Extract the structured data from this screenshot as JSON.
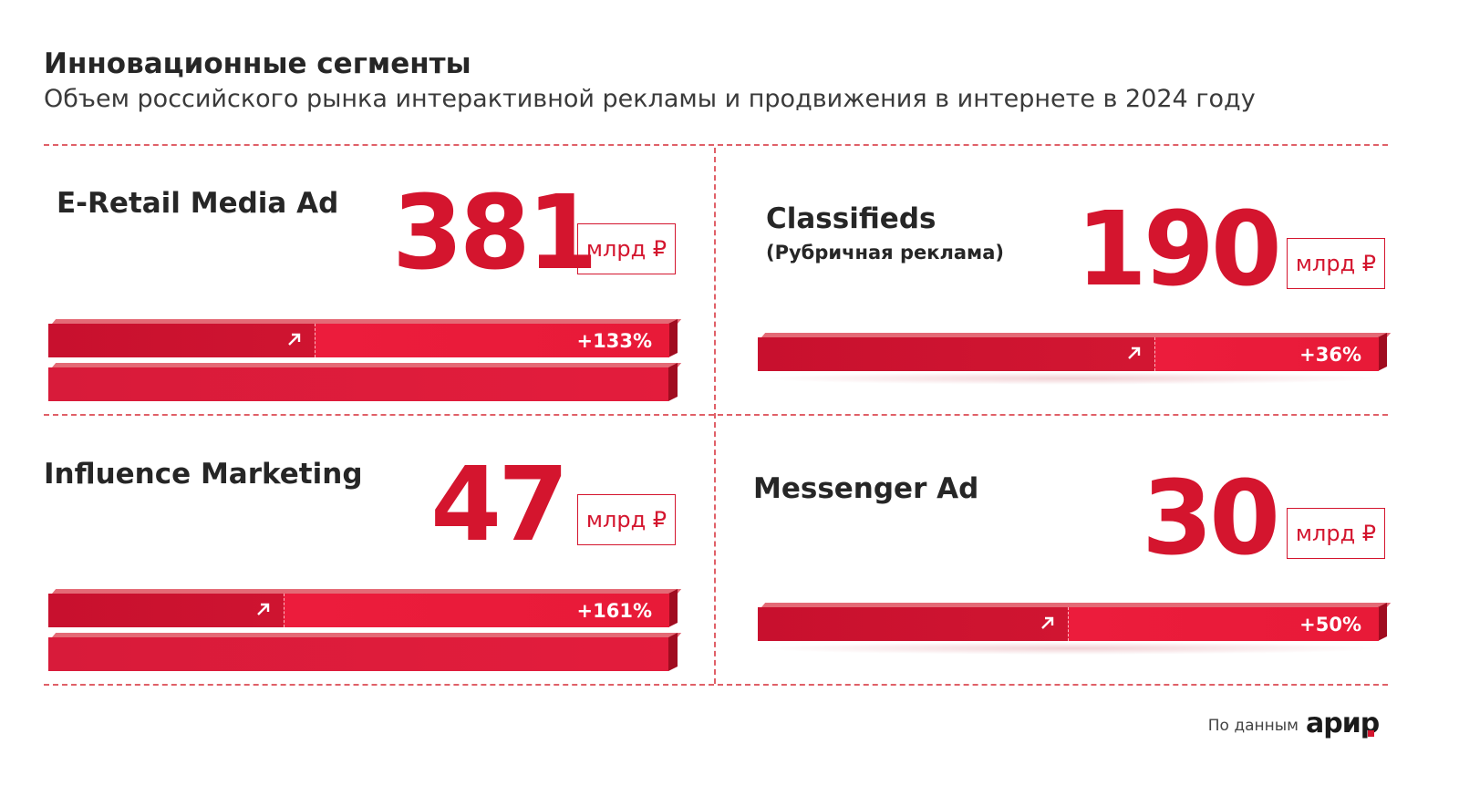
{
  "header": {
    "title": "Инновационные сегменты",
    "subtitle": "Объем российского рынка интерактивной рекламы и продвижения в интернете в 2024 году"
  },
  "unit": "млрд ₽",
  "source": {
    "label": "По данным",
    "logo": "арир"
  },
  "colors": {
    "accent": "#d4152e",
    "grid": "#e06068"
  },
  "icons": {
    "growth": "arrow-up-right-icon"
  },
  "chart_data": {
    "type": "bar",
    "segments": [
      {
        "name": "E-Retail Media Ad",
        "subname": "",
        "value": "381",
        "growth": "+133%",
        "growth_share": 0.57
      },
      {
        "name": "Classifieds",
        "subname": "(Рубричная реклама)",
        "value": "190",
        "growth": "+36%",
        "growth_share": 0.36
      },
      {
        "name": "Influence Marketing",
        "subname": "",
        "value": "47",
        "growth": "+161%",
        "growth_share": 0.62
      },
      {
        "name": "Messenger Ad",
        "subname": "",
        "value": "30",
        "growth": "+50%",
        "growth_share": 0.5
      }
    ]
  }
}
